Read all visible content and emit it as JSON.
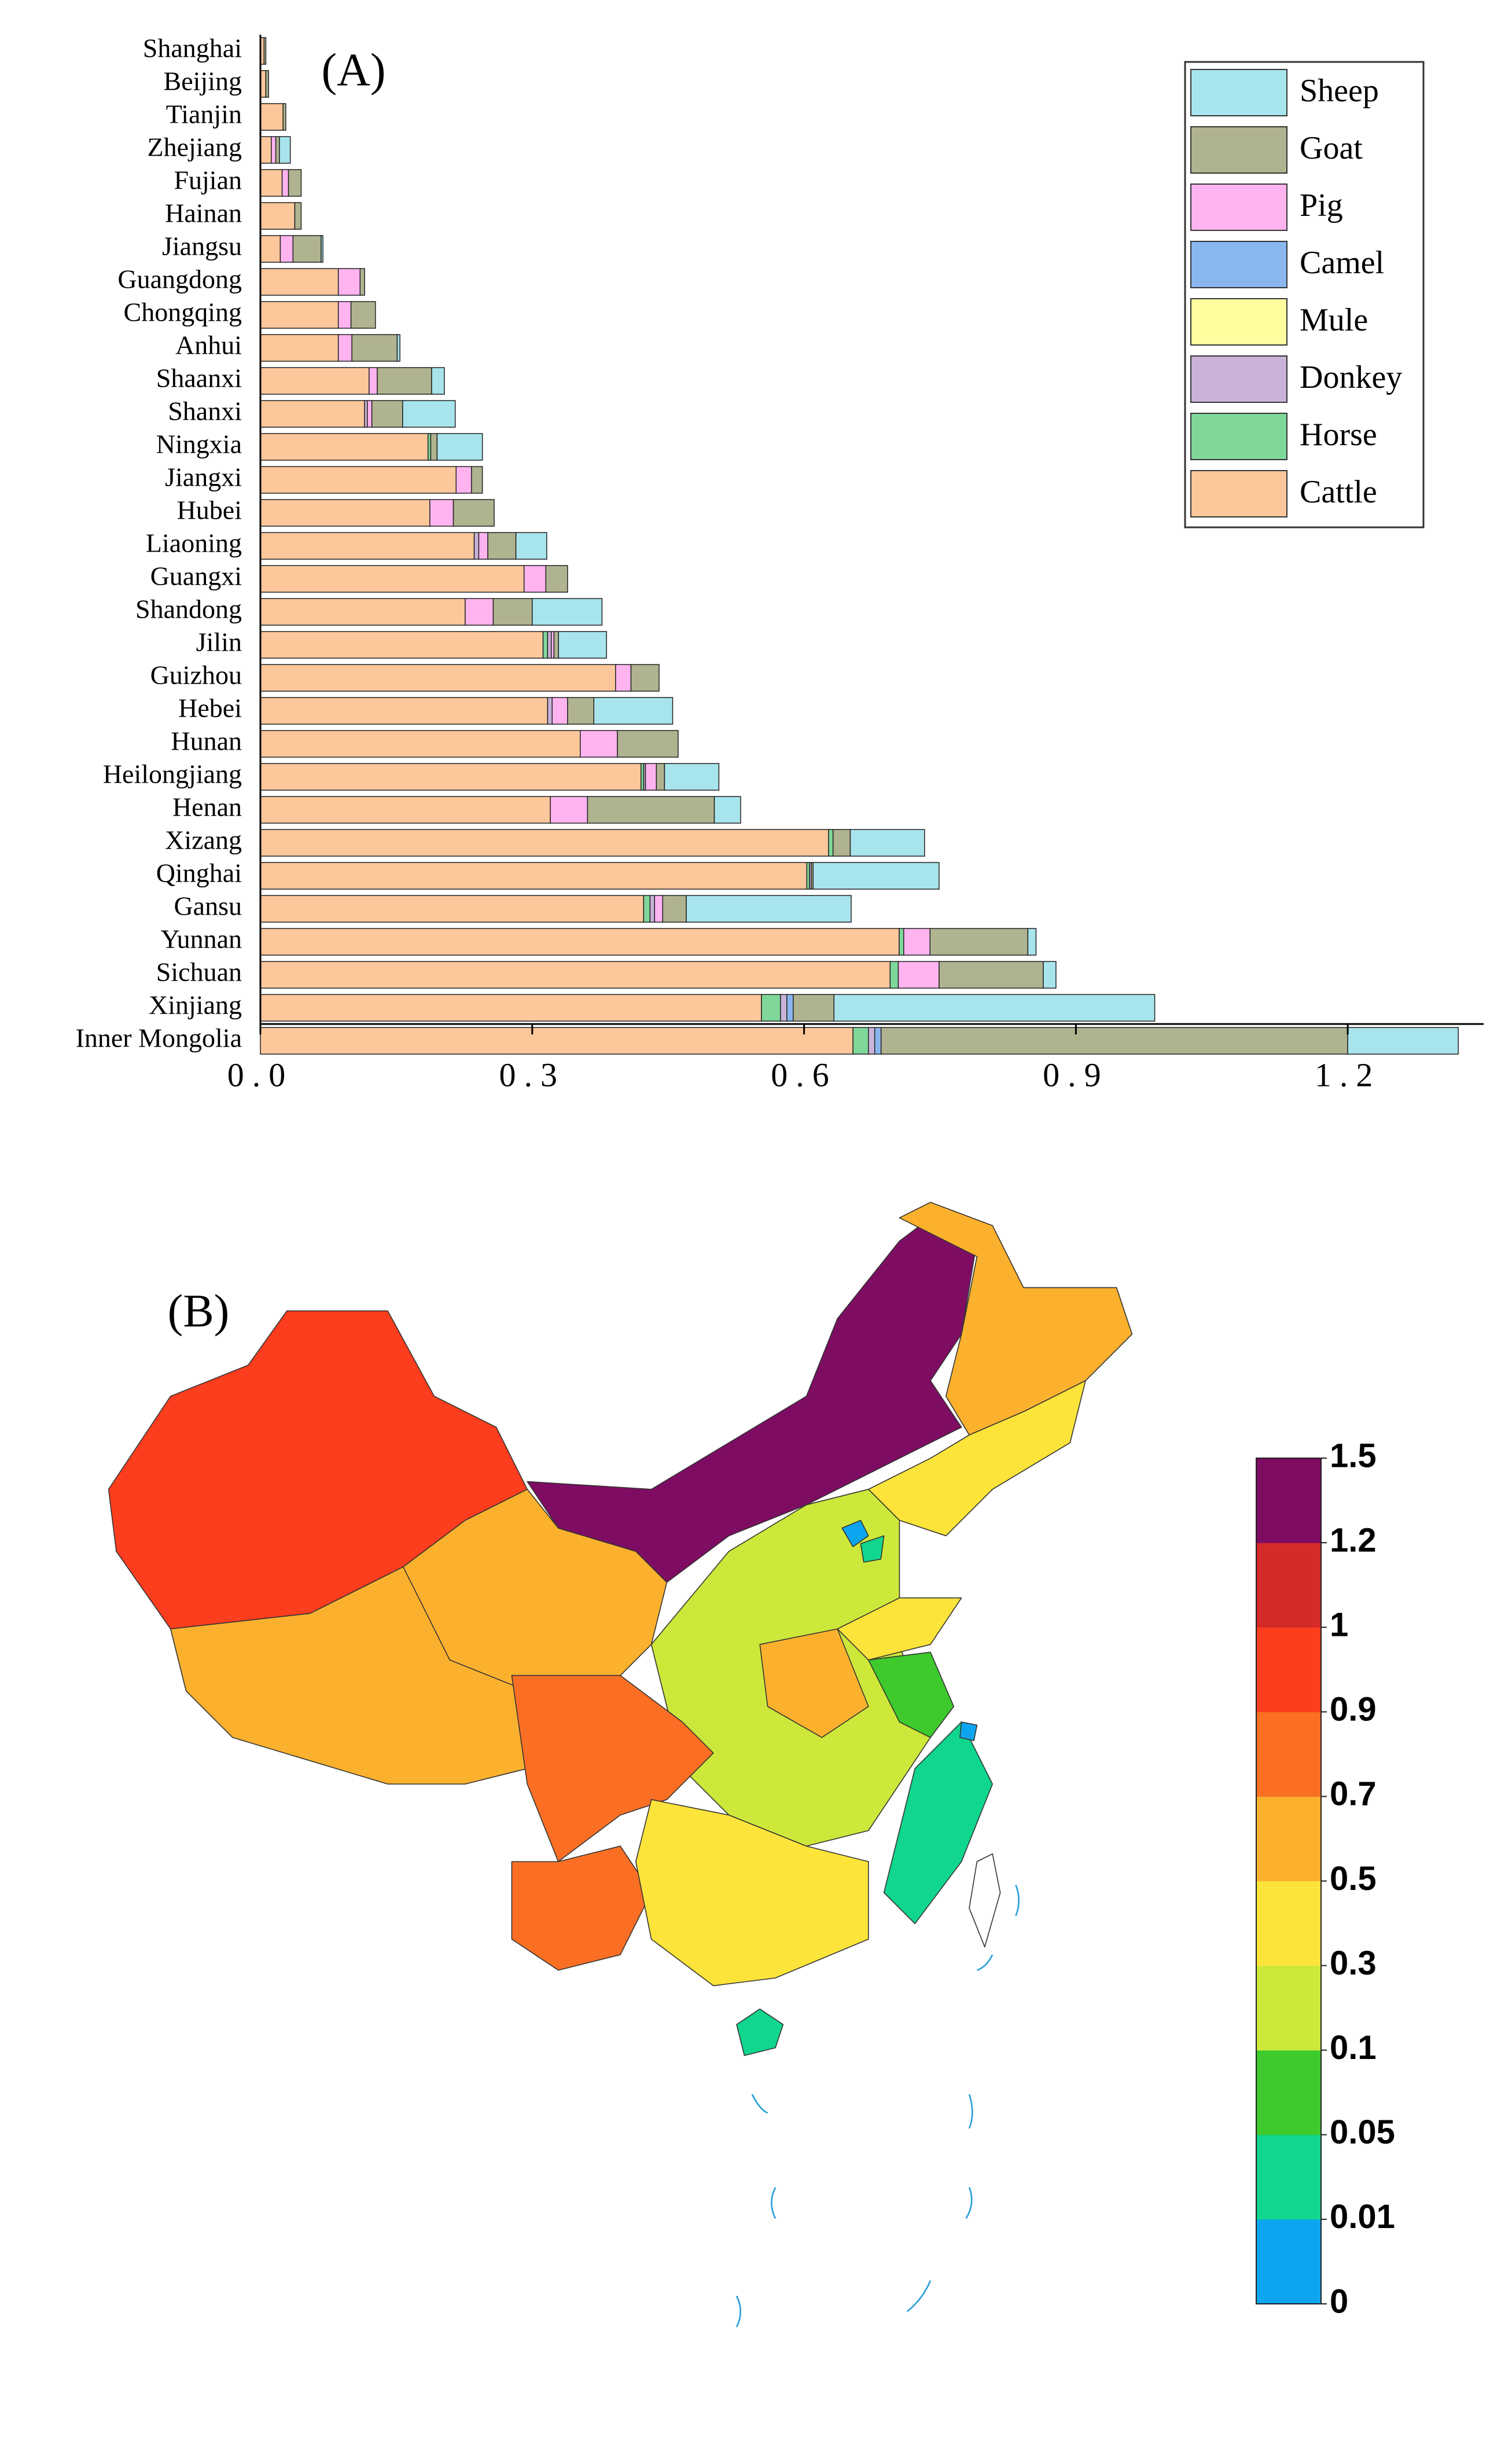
{
  "chart_data": [
    {
      "type": "bar",
      "orientation": "horizontal",
      "stacked": true,
      "title": "(A)",
      "categories": [
        "Shanghai",
        "Beijing",
        "Tianjin",
        "Zhejiang",
        "Fujian",
        "Hainan",
        "Jiangsu",
        "Guangdong",
        "Chongqing",
        "Anhui",
        "Shaanxi",
        "Shanxi",
        "Ningxia",
        "Jiangxi",
        "Hubei",
        "Liaoning",
        "Guangxi",
        "Shandong",
        "Jilin",
        "Guizhou",
        "Hebei",
        "Hunan",
        "Heilongjiang",
        "Henan",
        "Xizang",
        "Qinghai",
        "Gansu",
        "Yunnan",
        "Sichuan",
        "Xinjiang",
        "Inner Mongolia"
      ],
      "series": [
        {
          "name": "Cattle",
          "color": "#fcc79b",
          "values": [
            0.004,
            0.006,
            0.025,
            0.012,
            0.024,
            0.038,
            0.022,
            0.086,
            0.086,
            0.086,
            0.12,
            0.115,
            0.185,
            0.216,
            0.187,
            0.236,
            0.291,
            0.226,
            0.312,
            0.392,
            0.317,
            0.353,
            0.42,
            0.32,
            0.627,
            0.603,
            0.423,
            0.705,
            0.695,
            0.553,
            0.654
          ]
        },
        {
          "name": "Horse",
          "color": "#7fd89a",
          "values": [
            0,
            0,
            0,
            0,
            0,
            0,
            0,
            0,
            0,
            0,
            0,
            0,
            0.003,
            0,
            0,
            0,
            0,
            0,
            0.005,
            0,
            0,
            0,
            0.003,
            0,
            0.005,
            0.003,
            0.007,
            0.005,
            0.009,
            0.021,
            0.017
          ]
        },
        {
          "name": "Donkey",
          "color": "#c9b3d9",
          "values": [
            0,
            0,
            0,
            0,
            0,
            0,
            0,
            0,
            0,
            0,
            0,
            0.003,
            0,
            0,
            0,
            0.005,
            0,
            0,
            0.004,
            0,
            0.005,
            0,
            0.002,
            0,
            0,
            0.002,
            0.005,
            0,
            0,
            0.007,
            0.007
          ]
        },
        {
          "name": "Mule",
          "color": "#ffff9f",
          "values": [
            0,
            0,
            0,
            0,
            0,
            0,
            0,
            0,
            0,
            0,
            0,
            0,
            0,
            0,
            0,
            0,
            0,
            0,
            0,
            0,
            0,
            0,
            0,
            0,
            0,
            0,
            0,
            0,
            0,
            0,
            0
          ]
        },
        {
          "name": "Camel",
          "color": "#8ab6f0",
          "values": [
            0,
            0,
            0,
            0,
            0,
            0,
            0,
            0,
            0,
            0,
            0,
            0,
            0,
            0,
            0,
            0,
            0,
            0,
            0,
            0,
            0,
            0,
            0,
            0,
            0,
            0,
            0,
            0,
            0,
            0.007,
            0.007
          ]
        },
        {
          "name": "Pig",
          "color": "#ffb4f0",
          "values": [
            0,
            0,
            0,
            0.005,
            0.007,
            0,
            0.014,
            0.024,
            0.014,
            0.015,
            0.009,
            0.005,
            0,
            0.017,
            0.026,
            0.01,
            0.024,
            0.031,
            0.003,
            0.017,
            0.017,
            0.041,
            0.012,
            0.041,
            0,
            0,
            0.009,
            0.029,
            0.045,
            0,
            0
          ]
        },
        {
          "name": "Goat",
          "color": "#b0b38f",
          "values": [
            0.002,
            0.003,
            0.003,
            0.004,
            0.014,
            0.007,
            0.031,
            0.005,
            0.027,
            0.05,
            0.06,
            0.034,
            0.007,
            0.012,
            0.045,
            0.031,
            0.024,
            0.043,
            0.005,
            0.031,
            0.029,
            0.067,
            0.009,
            0.14,
            0.019,
            0.002,
            0.026,
            0.108,
            0.115,
            0.045,
            0.515
          ]
        },
        {
          "name": "Sheep",
          "color": "#a8e4ec",
          "values": [
            0,
            0,
            0,
            0.012,
            0,
            0,
            0.002,
            0,
            0,
            0.003,
            0.014,
            0.058,
            0.05,
            0,
            0,
            0.034,
            0,
            0.077,
            0.053,
            0,
            0.087,
            0,
            0.06,
            0.029,
            0.082,
            0.139,
            0.182,
            0.009,
            0.014,
            0.354,
            0.122
          ]
        }
      ],
      "xlim": [
        0,
        1.35
      ],
      "xticks": [
        {
          "value": 0,
          "label": "0.0"
        },
        {
          "value": 0.3,
          "label": "0.3"
        },
        {
          "value": 0.6,
          "label": "0.6"
        },
        {
          "value": 0.9,
          "label": "0.9"
        },
        {
          "value": 1.2,
          "label": "1.2"
        }
      ],
      "legend": "upper right"
    },
    {
      "type": "colorbar",
      "title": "(B)",
      "ticks": [
        0,
        0.01,
        0.05,
        0.1,
        0.3,
        0.5,
        0.7,
        0.9,
        1,
        1.2,
        1.5
      ],
      "colors": [
        "#0ea5f0",
        "#11d68d",
        "#3ec92c",
        "#cde83a",
        "#fde43a",
        "#fbb12e",
        "#fa6f24",
        "#fc3d1e",
        "#d42a2a",
        "#7f0c63"
      ]
    }
  ]
}
